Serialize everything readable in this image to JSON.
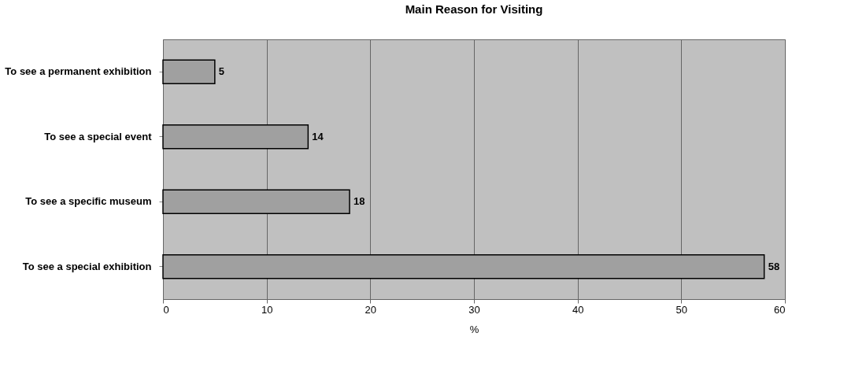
{
  "chart_data": {
    "type": "bar",
    "orientation": "horizontal",
    "title": "Main Reason for Visiting",
    "xlabel": "%",
    "categories": [
      "To see a permanent exhibition",
      "To see a special event",
      "To see a specific museum",
      "To see a special exhibition"
    ],
    "values": [
      5,
      14,
      18,
      58
    ],
    "color": "#a0a0a0",
    "xlim": [
      0,
      60
    ],
    "xticks": [
      0,
      10,
      20,
      30,
      40,
      50,
      60
    ],
    "grid": "x",
    "data_labels": true
  }
}
